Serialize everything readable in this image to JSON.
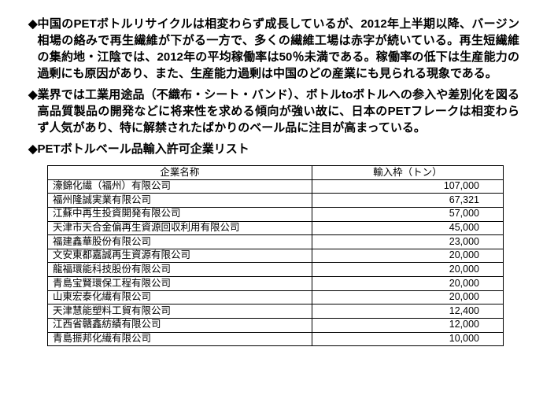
{
  "bullets": [
    "中国のPETボトルリサイクルは相変わらず成長しているが、2012年上半期以降、バージン相場の絡みで再生繊維が下がる一方で、多くの繊維工場は赤字が続いている。再生短繊維の集約地・江陰では、2012年の平均稼働率は50％未満である。稼働率の低下は生産能力の過剰にも原因があり、また、生産能力過剰は中国のどの産業にも見られる現象である。",
    "業界では工業用途品（不織布・シート・バンド）、ボトルtoボトルへの参入や差別化を図る高品質製品の開発などに将来性を求める傾向が強い故に、日本のPETフレークは相変わらず人気があり、特に解禁されたばかりのベール品に注目が高まっている。",
    "PETボトルベール品輸入許可企業リスト"
  ],
  "marker": "◆",
  "table": {
    "columns": [
      "企業名称",
      "輸入枠（トン）"
    ],
    "rows": [
      [
        "濠錦化繊（福州）有限公司",
        "107,000"
      ],
      [
        "福州隆誠実業有限公司",
        "67,321"
      ],
      [
        "江蘇中再生投資開発有限公司",
        "57,000"
      ],
      [
        "天津市天合金偏再生資源回収利用有限公司",
        "45,000"
      ],
      [
        "福建鑫華股份有限公司",
        "23,000"
      ],
      [
        "文安東都嘉誠再生資源有限公司",
        "20,000"
      ],
      [
        "龍福環能科技股份有限公司",
        "20,000"
      ],
      [
        "青島宝賢環保工程有限公司",
        "20,000"
      ],
      [
        "山東宏泰化繊有限公司",
        "20,000"
      ],
      [
        "天津慧能塑料工貿有限公司",
        "12,400"
      ],
      [
        "江西省贛鑫紡績有限公司",
        "12,000"
      ],
      [
        "青島振邦化繊有限公司",
        "10,000"
      ]
    ],
    "styling": {
      "border_color": "#000000",
      "header_align": "center",
      "name_align": "left",
      "qty_align": "right",
      "font_size_pt": 10,
      "col_width_pct": [
        58,
        42
      ]
    }
  },
  "page_style": {
    "background": "#ffffff",
    "text_color": "#000000",
    "bullet_font_size_pt": 12,
    "bullet_font_weight": "bold"
  }
}
